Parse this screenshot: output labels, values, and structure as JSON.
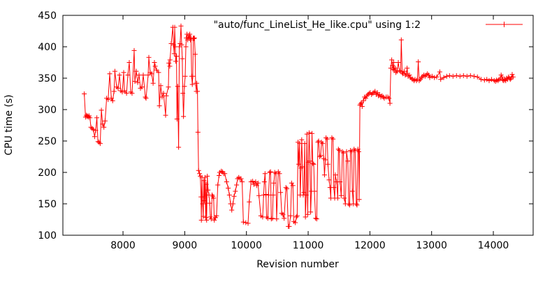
{
  "chart_data": {
    "type": "line",
    "title": "",
    "xlabel": "Revision number",
    "ylabel": "CPU time (s)",
    "legend_label": "\"auto/func_LineList_He_like.cpu\" using 1:2",
    "legend_position": "top-right",
    "grid": false,
    "line_color": "#ff0000",
    "marker": "plus",
    "xlim": [
      7026,
      14645
    ],
    "ylim": [
      100,
      450
    ],
    "x_ticks": [
      8000,
      9000,
      10000,
      11000,
      12000,
      13000,
      14000
    ],
    "y_ticks": [
      100,
      150,
      200,
      250,
      300,
      350,
      400,
      450
    ],
    "points": [
      [
        7372,
        325
      ],
      [
        7393,
        288
      ],
      [
        7405,
        291
      ],
      [
        7416,
        289
      ],
      [
        7428,
        290
      ],
      [
        7440,
        288
      ],
      [
        7452,
        290
      ],
      [
        7464,
        287
      ],
      [
        7480,
        272
      ],
      [
        7500,
        270
      ],
      [
        7520,
        268
      ],
      [
        7540,
        257
      ],
      [
        7558,
        267
      ],
      [
        7576,
        287
      ],
      [
        7594,
        249
      ],
      [
        7612,
        248
      ],
      [
        7630,
        246
      ],
      [
        7650,
        299
      ],
      [
        7670,
        277
      ],
      [
        7690,
        272
      ],
      [
        7710,
        282
      ],
      [
        7735,
        318
      ],
      [
        7760,
        316
      ],
      [
        7785,
        357
      ],
      [
        7810,
        318
      ],
      [
        7832,
        314
      ],
      [
        7855,
        329
      ],
      [
        7868,
        361
      ],
      [
        7898,
        336
      ],
      [
        7920,
        334
      ],
      [
        7943,
        355
      ],
      [
        7965,
        330
      ],
      [
        7988,
        328
      ],
      [
        8011,
        359
      ],
      [
        8023,
        330
      ],
      [
        8057,
        326
      ],
      [
        8079,
        355
      ],
      [
        8102,
        375
      ],
      [
        8125,
        328
      ],
      [
        8147,
        326
      ],
      [
        8181,
        394
      ],
      [
        8192,
        345
      ],
      [
        8215,
        361
      ],
      [
        8238,
        343
      ],
      [
        8260,
        355
      ],
      [
        8283,
        334
      ],
      [
        8306,
        336
      ],
      [
        8328,
        355
      ],
      [
        8362,
        320
      ],
      [
        8373,
        318
      ],
      [
        8407,
        355
      ],
      [
        8419,
        383
      ],
      [
        8441,
        359
      ],
      [
        8464,
        357
      ],
      [
        8487,
        342
      ],
      [
        8509,
        375
      ],
      [
        8521,
        369
      ],
      [
        8543,
        363
      ],
      [
        8577,
        359
      ],
      [
        8589,
        306
      ],
      [
        8611,
        338
      ],
      [
        8634,
        320
      ],
      [
        8656,
        326
      ],
      [
        8690,
        291
      ],
      [
        8702,
        322
      ],
      [
        8736,
        336
      ],
      [
        8743,
        374
      ],
      [
        8758,
        369
      ],
      [
        8762,
        379
      ],
      [
        8781,
        405
      ],
      [
        8807,
        431
      ],
      [
        8818,
        403
      ],
      [
        8830,
        389
      ],
      [
        8837,
        431
      ],
      [
        8848,
        400
      ],
      [
        8856,
        377
      ],
      [
        8867,
        385
      ],
      [
        8875,
        285
      ],
      [
        8886,
        337
      ],
      [
        8901,
        240
      ],
      [
        8913,
        400
      ],
      [
        8924,
        405
      ],
      [
        8939,
        433
      ],
      [
        8950,
        403
      ],
      [
        8961,
        381
      ],
      [
        8969,
        326
      ],
      [
        8980,
        289
      ],
      [
        8995,
        337
      ],
      [
        9007,
        353
      ],
      [
        9018,
        400
      ],
      [
        9026,
        414
      ],
      [
        9037,
        420
      ],
      [
        9048,
        411
      ],
      [
        9063,
        418
      ],
      [
        9074,
        413
      ],
      [
        9082,
        420
      ],
      [
        9093,
        411
      ],
      [
        9101,
        414
      ],
      [
        9112,
        353
      ],
      [
        9123,
        340
      ],
      [
        9131,
        353
      ],
      [
        9138,
        414
      ],
      [
        9150,
        413
      ],
      [
        9157,
        414
      ],
      [
        9169,
        388
      ],
      [
        9176,
        342
      ],
      [
        9188,
        329
      ],
      [
        9195,
        342
      ],
      [
        9206,
        329
      ],
      [
        9214,
        264
      ],
      [
        9225,
        203
      ],
      [
        9240,
        198
      ],
      [
        9253,
        194
      ],
      [
        9264,
        161
      ],
      [
        9270,
        124
      ],
      [
        9279,
        192
      ],
      [
        9290,
        150
      ],
      [
        9300,
        130
      ],
      [
        9309,
        187
      ],
      [
        9318,
        155
      ],
      [
        9328,
        192
      ],
      [
        9340,
        128
      ],
      [
        9347,
        181
      ],
      [
        9355,
        124
      ],
      [
        9366,
        194
      ],
      [
        9377,
        172
      ],
      [
        9392,
        164
      ],
      [
        9404,
        151
      ],
      [
        9415,
        129
      ],
      [
        9430,
        126
      ],
      [
        9443,
        164
      ],
      [
        9456,
        162
      ],
      [
        9468,
        159
      ],
      [
        9479,
        124
      ],
      [
        9498,
        128
      ],
      [
        9516,
        131
      ],
      [
        9536,
        180
      ],
      [
        9556,
        195
      ],
      [
        9566,
        200
      ],
      [
        9592,
        202
      ],
      [
        9611,
        201
      ],
      [
        9630,
        198
      ],
      [
        9649,
        198
      ],
      [
        9679,
        185
      ],
      [
        9705,
        175
      ],
      [
        9724,
        164
      ],
      [
        9743,
        150
      ],
      [
        9762,
        140
      ],
      [
        9781,
        150
      ],
      [
        9800,
        162
      ],
      [
        9820,
        170
      ],
      [
        9840,
        180
      ],
      [
        9856,
        190
      ],
      [
        9875,
        192
      ],
      [
        9894,
        190
      ],
      [
        9913,
        190
      ],
      [
        9930,
        185
      ],
      [
        9950,
        121
      ],
      [
        9990,
        120
      ],
      [
        10026,
        119
      ],
      [
        10045,
        153
      ],
      [
        10075,
        185
      ],
      [
        10101,
        186
      ],
      [
        10120,
        181
      ],
      [
        10150,
        185
      ],
      [
        10165,
        179
      ],
      [
        10188,
        183
      ],
      [
        10203,
        163
      ],
      [
        10233,
        131
      ],
      [
        10263,
        129
      ],
      [
        10278,
        164
      ],
      [
        10290,
        185
      ],
      [
        10301,
        198
      ],
      [
        10316,
        165
      ],
      [
        10327,
        129
      ],
      [
        10346,
        127
      ],
      [
        10358,
        164
      ],
      [
        10376,
        200
      ],
      [
        10391,
        201
      ],
      [
        10403,
        126
      ],
      [
        10422,
        127
      ],
      [
        10433,
        164
      ],
      [
        10444,
        183
      ],
      [
        10459,
        200
      ],
      [
        10478,
        198
      ],
      [
        10489,
        126
      ],
      [
        10516,
        201
      ],
      [
        10535,
        198
      ],
      [
        10554,
        168
      ],
      [
        10572,
        135
      ],
      [
        10591,
        133
      ],
      [
        10610,
        127
      ],
      [
        10640,
        176
      ],
      [
        10655,
        174
      ],
      [
        10678,
        114
      ],
      [
        10693,
        114
      ],
      [
        10716,
        131
      ],
      [
        10731,
        183
      ],
      [
        10753,
        179
      ],
      [
        10768,
        122
      ],
      [
        10791,
        120
      ],
      [
        10810,
        129
      ],
      [
        10822,
        131
      ],
      [
        10835,
        248
      ],
      [
        10848,
        213
      ],
      [
        10860,
        246
      ],
      [
        10872,
        164
      ],
      [
        10884,
        207
      ],
      [
        10896,
        252
      ],
      [
        10908,
        209
      ],
      [
        10920,
        164
      ],
      [
        10932,
        168
      ],
      [
        10944,
        246
      ],
      [
        10956,
        129
      ],
      [
        10968,
        164
      ],
      [
        10980,
        261
      ],
      [
        10992,
        133
      ],
      [
        11004,
        216
      ],
      [
        11016,
        263
      ],
      [
        11028,
        218
      ],
      [
        11040,
        137
      ],
      [
        11052,
        170
      ],
      [
        11062,
        262
      ],
      [
        11075,
        214
      ],
      [
        11090,
        213
      ],
      [
        11102,
        170
      ],
      [
        11121,
        127
      ],
      [
        11139,
        126
      ],
      [
        11158,
        248
      ],
      [
        11170,
        250
      ],
      [
        11188,
        225
      ],
      [
        11203,
        227
      ],
      [
        11215,
        248
      ],
      [
        11234,
        246
      ],
      [
        11252,
        222
      ],
      [
        11264,
        196
      ],
      [
        11279,
        220
      ],
      [
        11290,
        255
      ],
      [
        11309,
        253
      ],
      [
        11320,
        213
      ],
      [
        11339,
        188
      ],
      [
        11354,
        176
      ],
      [
        11366,
        159
      ],
      [
        11384,
        255
      ],
      [
        11403,
        253
      ],
      [
        11415,
        176
      ],
      [
        11430,
        159
      ],
      [
        11441,
        196
      ],
      [
        11460,
        185
      ],
      [
        11479,
        159
      ],
      [
        11490,
        237
      ],
      [
        11505,
        235
      ],
      [
        11516,
        185
      ],
      [
        11535,
        163
      ],
      [
        11554,
        233
      ],
      [
        11573,
        231
      ],
      [
        11584,
        159
      ],
      [
        11603,
        150
      ],
      [
        11622,
        233
      ],
      [
        11641,
        218
      ],
      [
        11656,
        150
      ],
      [
        11671,
        148
      ],
      [
        11686,
        235
      ],
      [
        11705,
        233
      ],
      [
        11716,
        170
      ],
      [
        11731,
        150
      ],
      [
        11743,
        237
      ],
      [
        11761,
        235
      ],
      [
        11780,
        150
      ],
      [
        11791,
        148
      ],
      [
        11806,
        237
      ],
      [
        11819,
        233
      ],
      [
        11826,
        157
      ],
      [
        11838,
        307
      ],
      [
        11849,
        309
      ],
      [
        11864,
        311
      ],
      [
        11875,
        305
      ],
      [
        11894,
        314
      ],
      [
        11913,
        320
      ],
      [
        11932,
        318
      ],
      [
        11951,
        322
      ],
      [
        11970,
        324
      ],
      [
        11988,
        326
      ],
      [
        12007,
        327
      ],
      [
        12026,
        324
      ],
      [
        12045,
        326
      ],
      [
        12064,
        327
      ],
      [
        12083,
        329
      ],
      [
        12102,
        324
      ],
      [
        12121,
        327
      ],
      [
        12139,
        322
      ],
      [
        12158,
        324
      ],
      [
        12177,
        320
      ],
      [
        12196,
        322
      ],
      [
        12215,
        320
      ],
      [
        12234,
        318
      ],
      [
        12264,
        320
      ],
      [
        12290,
        320
      ],
      [
        12309,
        318
      ],
      [
        12325,
        310
      ],
      [
        12339,
        366
      ],
      [
        12354,
        379
      ],
      [
        12365,
        370
      ],
      [
        12377,
        364
      ],
      [
        12384,
        375
      ],
      [
        12395,
        363
      ],
      [
        12414,
        366
      ],
      [
        12422,
        359
      ],
      [
        12441,
        361
      ],
      [
        12460,
        375
      ],
      [
        12479,
        362
      ],
      [
        12498,
        361
      ],
      [
        12509,
        411
      ],
      [
        12524,
        359
      ],
      [
        12535,
        357
      ],
      [
        12554,
        361
      ],
      [
        12573,
        355
      ],
      [
        12592,
        357
      ],
      [
        12603,
        366
      ],
      [
        12618,
        353
      ],
      [
        12641,
        355
      ],
      [
        12656,
        351
      ],
      [
        12678,
        349
      ],
      [
        12697,
        348
      ],
      [
        12716,
        346
      ],
      [
        12731,
        348
      ],
      [
        12754,
        346
      ],
      [
        12769,
        348
      ],
      [
        12784,
        376
      ],
      [
        12799,
        346
      ],
      [
        12818,
        348
      ],
      [
        12837,
        351
      ],
      [
        12856,
        353
      ],
      [
        12875,
        355
      ],
      [
        12894,
        353
      ],
      [
        12913,
        355
      ],
      [
        12932,
        357
      ],
      [
        12951,
        355
      ],
      [
        12970,
        351
      ],
      [
        13008,
        353
      ],
      [
        13045,
        351
      ],
      [
        13083,
        352
      ],
      [
        13132,
        360
      ],
      [
        13147,
        348
      ],
      [
        13196,
        351
      ],
      [
        13245,
        353
      ],
      [
        13290,
        354
      ],
      [
        13347,
        353
      ],
      [
        13403,
        354
      ],
      [
        13460,
        353
      ],
      [
        13516,
        354
      ],
      [
        13573,
        353
      ],
      [
        13630,
        354
      ],
      [
        13687,
        353
      ],
      [
        13743,
        352
      ],
      [
        13800,
        348
      ],
      [
        13856,
        347
      ],
      [
        13894,
        348
      ],
      [
        13932,
        346
      ],
      [
        13970,
        348
      ],
      [
        14015,
        346
      ],
      [
        14037,
        345
      ],
      [
        14052,
        347
      ],
      [
        14075,
        346
      ],
      [
        14090,
        348
      ],
      [
        14112,
        349
      ],
      [
        14127,
        355
      ],
      [
        14140,
        352
      ],
      [
        14155,
        347
      ],
      [
        14170,
        346
      ],
      [
        14185,
        348
      ],
      [
        14200,
        346
      ],
      [
        14215,
        350
      ],
      [
        14230,
        348
      ],
      [
        14245,
        352
      ],
      [
        14260,
        350
      ],
      [
        14275,
        348
      ],
      [
        14290,
        350
      ],
      [
        14305,
        356
      ],
      [
        14320,
        352
      ]
    ]
  }
}
